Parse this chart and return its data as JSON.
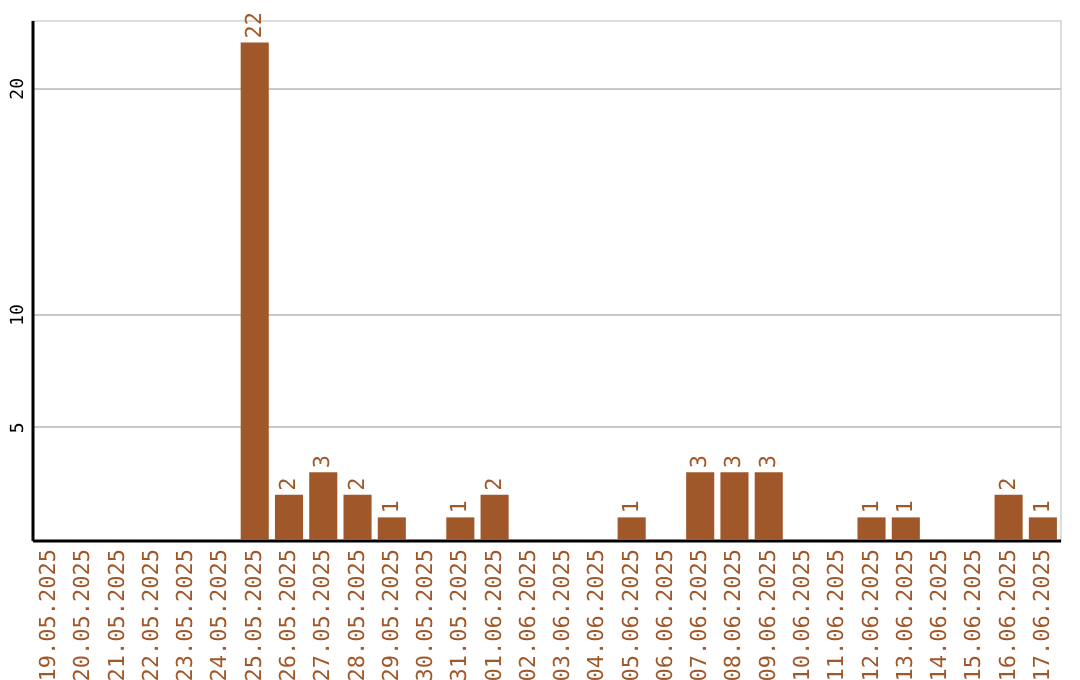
{
  "chart_data": {
    "type": "bar",
    "categories": [
      "19.05.2025",
      "20.05.2025",
      "21.05.2025",
      "22.05.2025",
      "23.05.2025",
      "24.05.2025",
      "25.05.2025",
      "26.05.2025",
      "27.05.2025",
      "28.05.2025",
      "29.05.2025",
      "30.05.2025",
      "31.05.2025",
      "01.06.2025",
      "02.06.2025",
      "03.06.2025",
      "04.06.2025",
      "05.06.2025",
      "06.06.2025",
      "07.06.2025",
      "08.06.2025",
      "09.06.2025",
      "10.06.2025",
      "11.06.2025",
      "12.06.2025",
      "13.06.2025",
      "14.06.2025",
      "15.06.2025",
      "16.06.2025",
      "17.06.2025"
    ],
    "values": [
      0,
      0,
      0,
      0,
      0,
      0,
      22,
      2,
      3,
      2,
      1,
      0,
      1,
      2,
      0,
      0,
      0,
      1,
      0,
      3,
      3,
      3,
      0,
      0,
      1,
      1,
      0,
      0,
      2,
      1
    ],
    "value_labels": [
      null,
      null,
      null,
      null,
      null,
      null,
      "22",
      "2",
      "3",
      "2",
      "1",
      null,
      "1",
      "2",
      null,
      null,
      null,
      "1",
      null,
      "3",
      "3",
      "3",
      null,
      null,
      "1",
      "1",
      null,
      null,
      "2",
      "1"
    ],
    "color": "#a0582a",
    "ylim": [
      0,
      23
    ],
    "yticks": [
      5,
      10,
      20
    ],
    "grid": "y"
  }
}
